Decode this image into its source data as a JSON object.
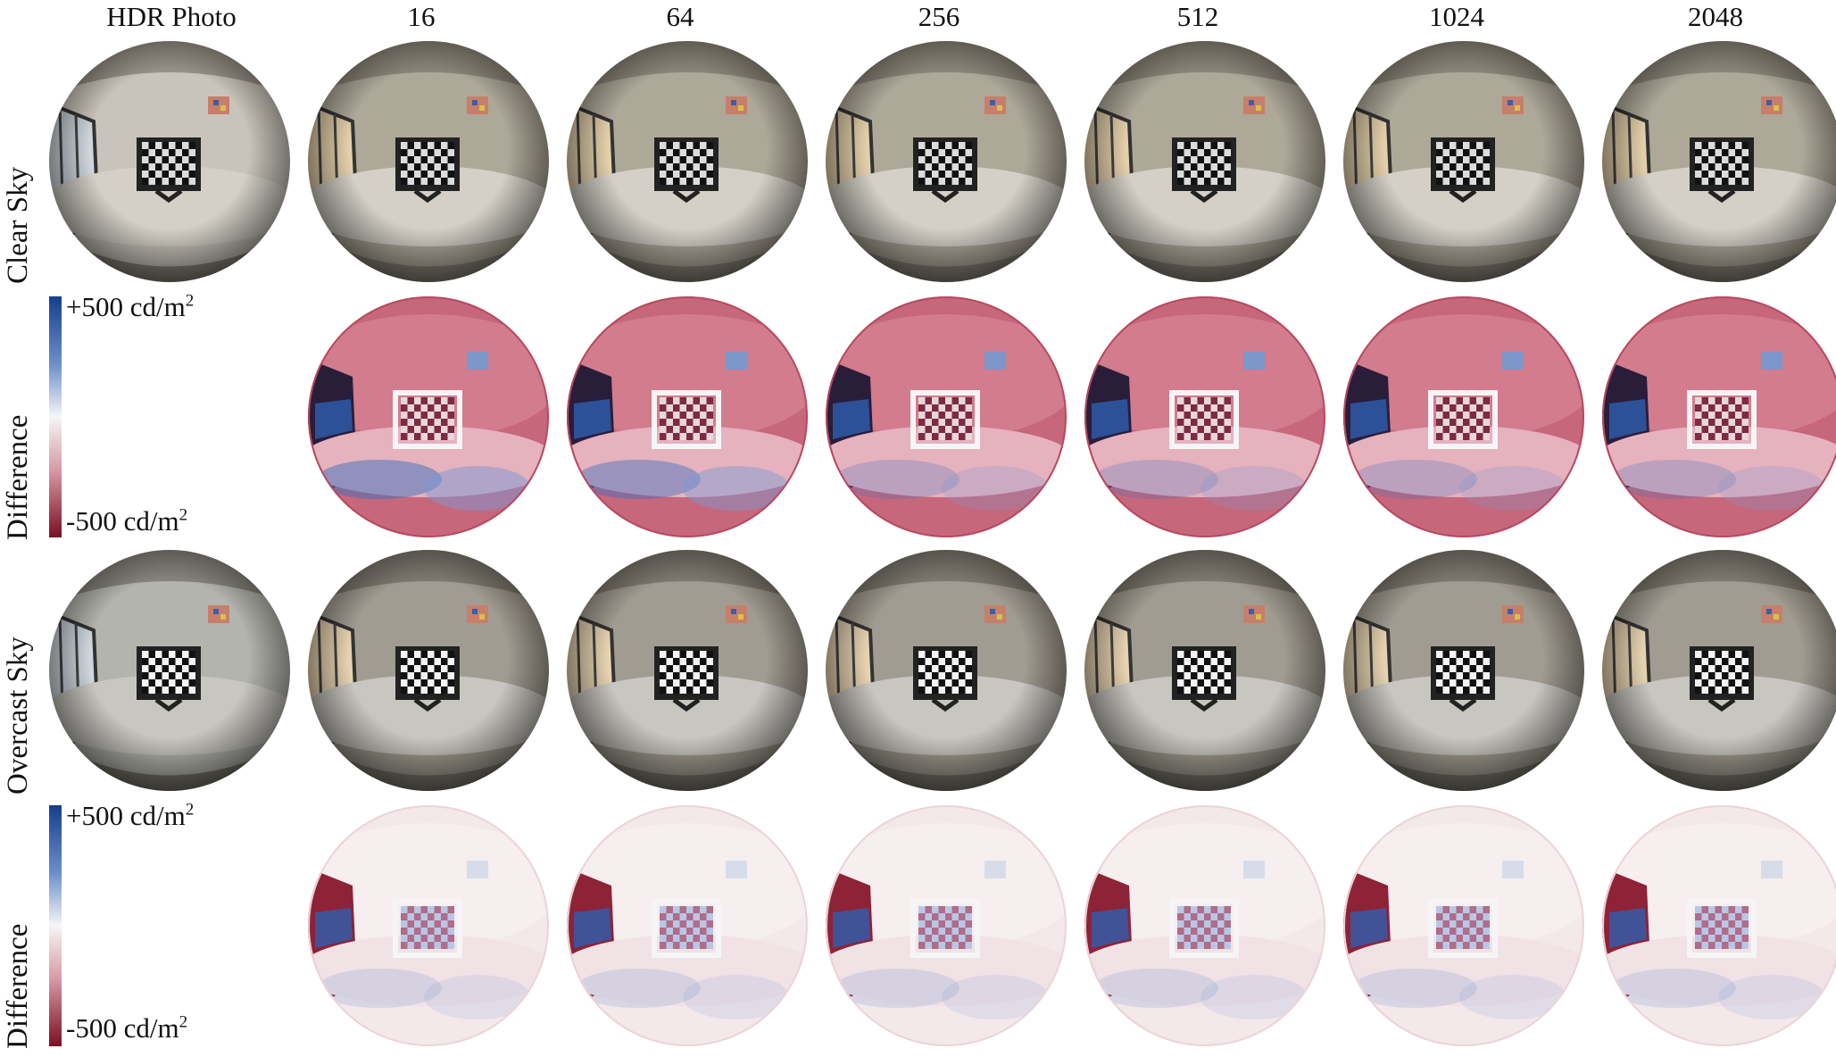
{
  "columns": [
    "HDR Photo",
    "16",
    "64",
    "256",
    "512",
    "1024",
    "2048"
  ],
  "rows": {
    "clear_sky": "Clear Sky",
    "clear_diff": "Difference",
    "overcast_sky": "Overcast Sky",
    "overcast_diff": "Difference"
  },
  "colorbar": {
    "top_label": "+500 cd/m",
    "bottom_label": "-500 cd/m",
    "exponent": "2",
    "top_color": "#173e8c",
    "mid_color": "#f7f5f6",
    "bottom_color": "#7a0f22"
  }
}
